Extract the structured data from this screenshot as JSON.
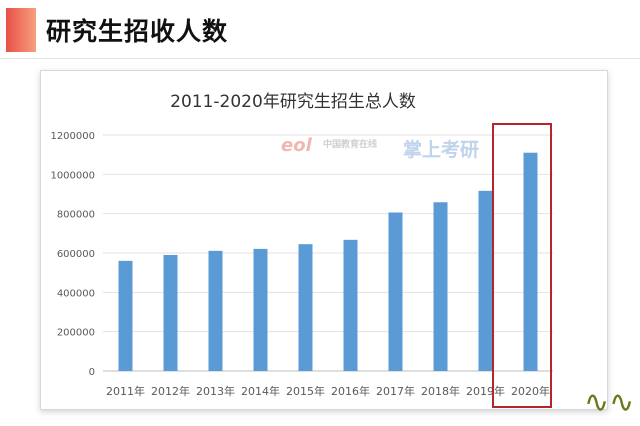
{
  "slide": {
    "title": "研究生招收人数",
    "accent_color": "#ee6a55",
    "decoration_icon": "wave-icon"
  },
  "watermarks": {
    "eol": "eol",
    "site": "中国教育在线",
    "app": "掌上考研"
  },
  "chart_data": {
    "type": "bar",
    "title": "2011-2020年研究生招生总人数",
    "categories": [
      "2011年",
      "2012年",
      "2013年",
      "2014年",
      "2015年",
      "2016年",
      "2017年",
      "2018年",
      "2019年",
      "2020年"
    ],
    "values": [
      560000,
      590000,
      611000,
      621000,
      645000,
      667000,
      806000,
      858000,
      916000,
      1110000
    ],
    "ylim": [
      0,
      1200000
    ],
    "yticks": [
      0,
      200000,
      400000,
      600000,
      800000,
      1000000,
      1200000
    ],
    "xlabel": "",
    "ylabel": "",
    "bar_color": "#5b9bd5",
    "grid": true,
    "highlight_category": "2020年",
    "highlight_color": "#b3262b"
  }
}
